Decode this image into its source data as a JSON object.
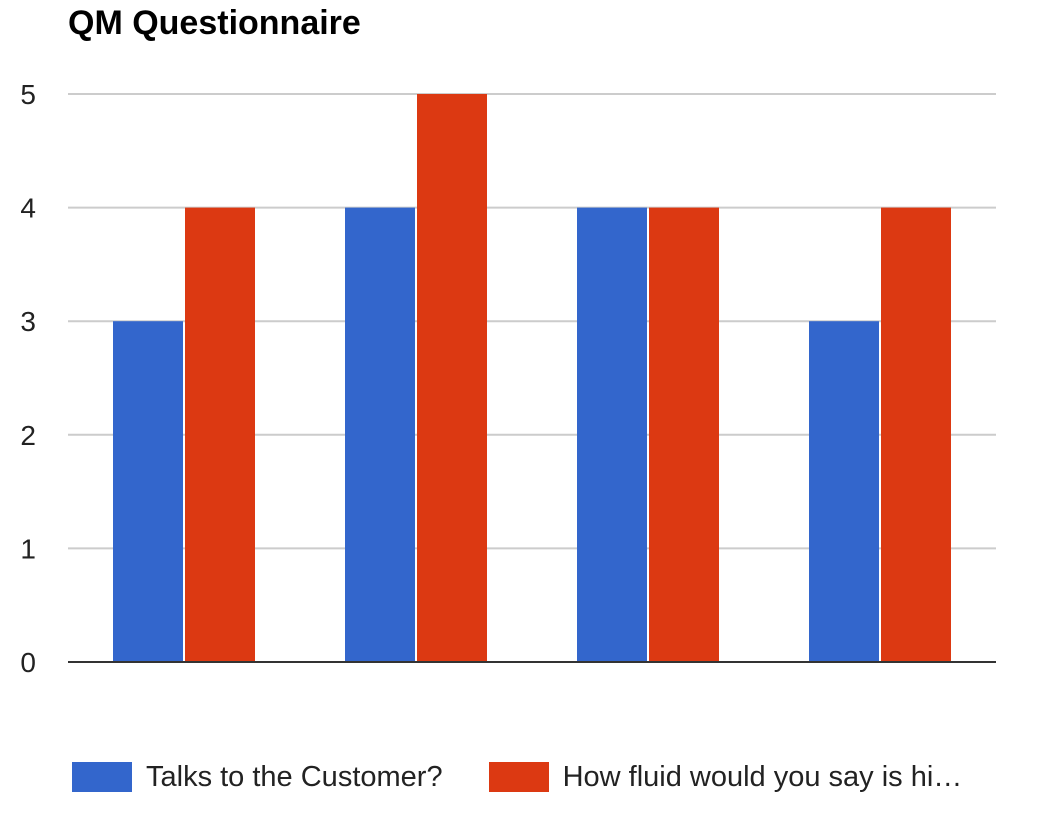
{
  "chart_data": {
    "type": "bar",
    "title": "QM Questionnaire",
    "xlabel": "",
    "ylabel": "",
    "categories": [
      "",
      "",
      "",
      ""
    ],
    "series": [
      {
        "name": "Talks to the Customer?",
        "values": [
          3,
          4,
          4,
          3
        ],
        "color": "#3366cc"
      },
      {
        "name": "How fluid would you say is hi…",
        "values": [
          4,
          5,
          4,
          4
        ],
        "color": "#dc3912"
      }
    ],
    "ylim": [
      0,
      5
    ],
    "y_ticks": [
      "0",
      "1",
      "2",
      "3",
      "4",
      "5"
    ],
    "grid": true,
    "legend_position": "bottom"
  }
}
